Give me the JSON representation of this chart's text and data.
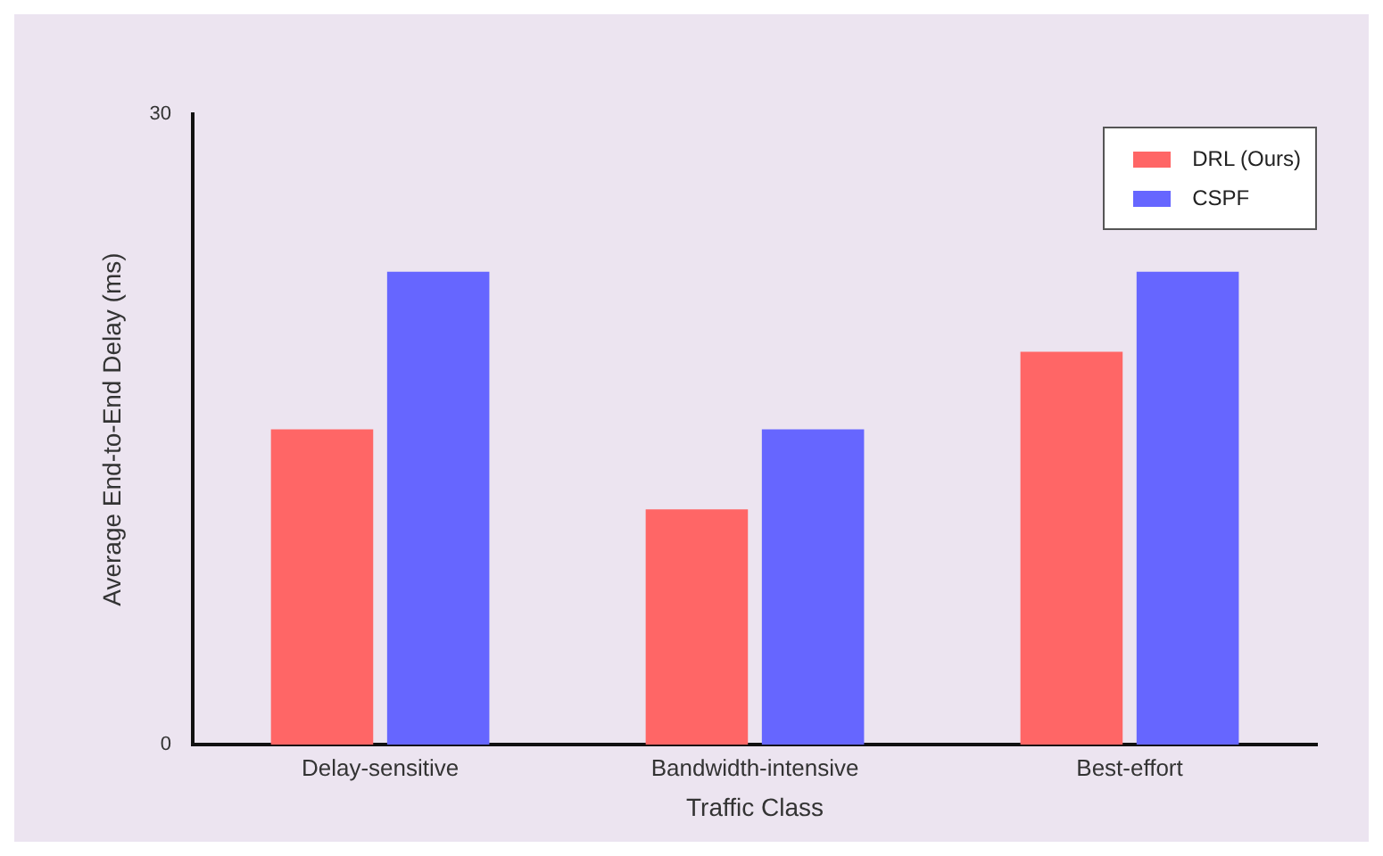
{
  "chart_data": {
    "type": "bar",
    "xlabel": "Traffic Class",
    "ylabel": "Average End-to-End Delay (ms)",
    "categories": [
      "Delay-sensitive",
      "Bandwidth-intensive",
      "Best-effort"
    ],
    "series": [
      {
        "name": "DRL (Ours)",
        "color": "#ff6666",
        "values": [
          15,
          11.2,
          18.7
        ]
      },
      {
        "name": "CSPF",
        "color": "#6666ff",
        "values": [
          22.5,
          15,
          22.5
        ]
      }
    ],
    "ylim": [
      0,
      30
    ],
    "yticks": [
      0,
      30
    ],
    "grid": false,
    "legend": "top right"
  }
}
